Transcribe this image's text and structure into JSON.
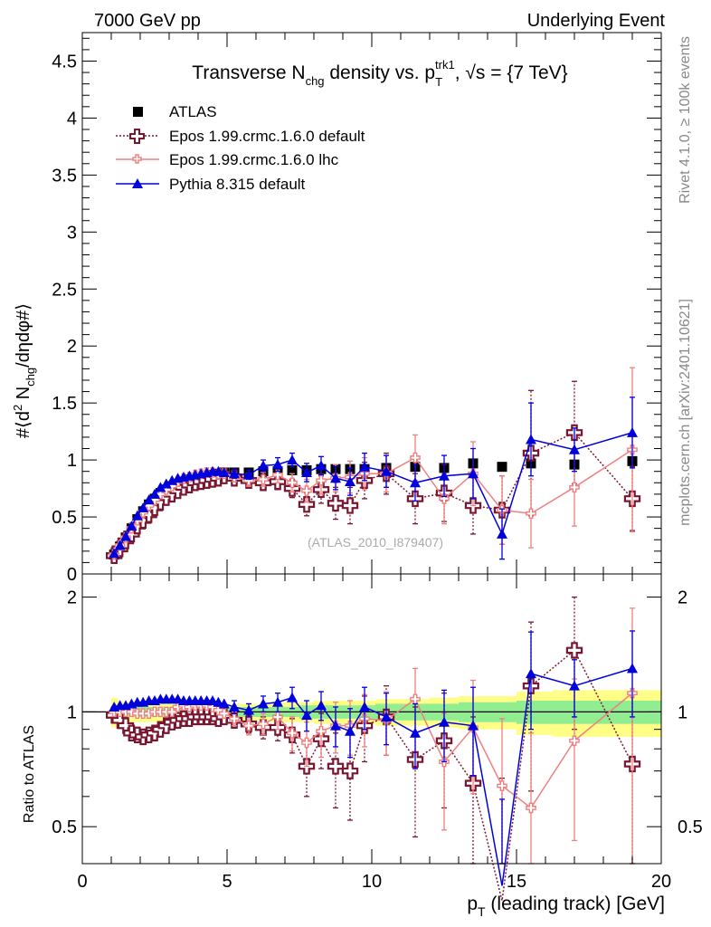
{
  "header": {
    "left": "7000 GeV pp",
    "right": "Underlying Event"
  },
  "side": {
    "rivet": "Rivet 4.1.0, ≥ 100k events",
    "mcplots": "mcplots.cern.ch [arXiv:2401.10621]"
  },
  "colors": {
    "atlas": "#000000",
    "epos_default": "#7a1630",
    "epos_lhc": "#f08080",
    "pythia": "#0000dd",
    "band_inner": "#90ee90",
    "band_outer": "#ffff88"
  },
  "chart_data": [
    {
      "type": "scatter",
      "title_parts": {
        "main_a": "Transverse N",
        "sub_a": "chg",
        "main_b": " density vs. p",
        "sub_b": "T",
        "sup_b": "trk1",
        "main_c": ", √s = {7 TeV}"
      },
      "ylabel_parts": {
        "a": "#⟨d",
        "sup": "2",
        "b": " N",
        "sub": "chg",
        "c": "/dηdφ#⟩"
      },
      "xlim": [
        0,
        20
      ],
      "ylim": [
        0,
        4.75
      ],
      "yticks": [
        0,
        0.5,
        1,
        1.5,
        2,
        2.5,
        3,
        3.5,
        4,
        4.5
      ],
      "ytick_labels": [
        "0",
        "0.5",
        "1",
        "1.5",
        "2",
        "2.5",
        "3",
        "3.5",
        "4",
        "4.5"
      ],
      "watermark": "(ATLAS_2010_I879407)",
      "legend": [
        "ATLAS",
        "Epos 1.99.crmc.1.6.0 default",
        "Epos 1.99.crmc.1.6.0 lhc",
        "Pythia 8.315 default"
      ],
      "series": [
        {
          "name": "ATLAS",
          "x": [
            1.1,
            1.3,
            1.5,
            1.7,
            1.9,
            2.1,
            2.3,
            2.5,
            2.7,
            2.9,
            3.1,
            3.3,
            3.5,
            3.7,
            3.9,
            4.1,
            4.3,
            4.5,
            4.7,
            4.9,
            5.25,
            5.75,
            6.25,
            6.75,
            7.25,
            7.75,
            8.25,
            8.75,
            9.25,
            9.75,
            10.5,
            11.5,
            12.5,
            13.5,
            14.5,
            15.5,
            17.0,
            19.0
          ],
          "y": [
            0.17,
            0.24,
            0.32,
            0.4,
            0.48,
            0.55,
            0.61,
            0.66,
            0.71,
            0.74,
            0.77,
            0.79,
            0.81,
            0.83,
            0.84,
            0.85,
            0.86,
            0.87,
            0.88,
            0.89,
            0.89,
            0.89,
            0.9,
            0.9,
            0.91,
            0.91,
            0.92,
            0.92,
            0.92,
            0.92,
            0.93,
            0.94,
            0.93,
            0.97,
            0.94,
            0.97,
            0.96,
            0.99
          ]
        },
        {
          "name": "Epos 1.99.crmc.1.6.0 default",
          "x": [
            1.1,
            1.3,
            1.5,
            1.7,
            1.9,
            2.1,
            2.3,
            2.5,
            2.7,
            2.9,
            3.1,
            3.3,
            3.5,
            3.7,
            3.9,
            4.1,
            4.3,
            4.5,
            4.7,
            4.9,
            5.25,
            5.75,
            6.25,
            6.75,
            7.25,
            7.75,
            8.25,
            8.75,
            9.25,
            9.75,
            10.5,
            11.5,
            12.5,
            13.5,
            14.5,
            15.5,
            17.0,
            19.0
          ],
          "y": [
            0.16,
            0.22,
            0.29,
            0.35,
            0.42,
            0.47,
            0.52,
            0.58,
            0.63,
            0.67,
            0.7,
            0.73,
            0.76,
            0.78,
            0.8,
            0.81,
            0.82,
            0.83,
            0.84,
            0.86,
            0.84,
            0.82,
            0.8,
            0.81,
            0.75,
            0.61,
            0.74,
            0.62,
            0.6,
            0.82,
            0.88,
            0.66,
            0.71,
            0.6,
            0.56,
            1.06,
            1.24,
            0.66
          ],
          "err": [
            0.01,
            0.01,
            0.01,
            0.01,
            0.01,
            0.01,
            0.01,
            0.01,
            0.01,
            0.01,
            0.01,
            0.01,
            0.01,
            0.02,
            0.02,
            0.02,
            0.02,
            0.02,
            0.03,
            0.03,
            0.04,
            0.05,
            0.06,
            0.07,
            0.08,
            0.1,
            0.12,
            0.14,
            0.16,
            0.16,
            0.18,
            0.22,
            0.25,
            0.25,
            0.3,
            0.55,
            0.45,
            0.28
          ]
        },
        {
          "name": "Epos 1.99.crmc.1.6.0 lhc",
          "x": [
            1.1,
            1.3,
            1.5,
            1.7,
            1.9,
            2.1,
            2.3,
            2.5,
            2.7,
            2.9,
            3.1,
            3.3,
            3.5,
            3.7,
            3.9,
            4.1,
            4.3,
            4.5,
            4.7,
            4.9,
            5.25,
            5.75,
            6.25,
            6.75,
            7.25,
            7.75,
            8.25,
            8.75,
            9.25,
            9.75,
            10.5,
            11.5,
            12.5,
            13.5,
            14.5,
            15.5,
            17.0,
            19.0
          ],
          "y": [
            0.17,
            0.25,
            0.32,
            0.4,
            0.47,
            0.54,
            0.6,
            0.65,
            0.7,
            0.74,
            0.77,
            0.81,
            0.84,
            0.85,
            0.87,
            0.88,
            0.89,
            0.89,
            0.88,
            0.88,
            0.85,
            0.82,
            0.83,
            0.87,
            0.8,
            0.73,
            0.82,
            0.84,
            0.85,
            0.88,
            0.88,
            1.02,
            0.66,
            0.88,
            0.56,
            0.53,
            0.76,
            1.09
          ],
          "err": [
            0.01,
            0.01,
            0.01,
            0.01,
            0.01,
            0.01,
            0.01,
            0.01,
            0.01,
            0.01,
            0.01,
            0.01,
            0.01,
            0.02,
            0.02,
            0.02,
            0.02,
            0.02,
            0.03,
            0.03,
            0.04,
            0.05,
            0.06,
            0.07,
            0.08,
            0.1,
            0.12,
            0.12,
            0.14,
            0.14,
            0.16,
            0.2,
            0.22,
            0.28,
            0.3,
            0.3,
            0.34,
            0.72
          ]
        },
        {
          "name": "Pythia 8.315 default",
          "x": [
            1.1,
            1.3,
            1.5,
            1.7,
            1.9,
            2.1,
            2.3,
            2.5,
            2.7,
            2.9,
            3.1,
            3.3,
            3.5,
            3.7,
            3.9,
            4.1,
            4.3,
            4.5,
            4.7,
            4.9,
            5.25,
            5.75,
            6.25,
            6.75,
            7.25,
            7.75,
            8.25,
            8.75,
            9.25,
            9.75,
            10.5,
            11.5,
            12.5,
            13.5,
            14.5,
            15.5,
            17.0,
            19.0
          ],
          "y": [
            0.18,
            0.25,
            0.33,
            0.42,
            0.51,
            0.58,
            0.65,
            0.7,
            0.76,
            0.79,
            0.82,
            0.84,
            0.85,
            0.86,
            0.87,
            0.88,
            0.89,
            0.9,
            0.9,
            0.89,
            0.88,
            0.87,
            0.95,
            0.96,
            1.0,
            0.89,
            0.95,
            0.84,
            0.81,
            0.94,
            0.9,
            0.8,
            0.86,
            0.88,
            0.35,
            1.18,
            1.09,
            1.24
          ],
          "err": [
            0.01,
            0.01,
            0.01,
            0.01,
            0.01,
            0.01,
            0.01,
            0.01,
            0.01,
            0.01,
            0.01,
            0.01,
            0.01,
            0.02,
            0.02,
            0.02,
            0.02,
            0.02,
            0.03,
            0.03,
            0.04,
            0.04,
            0.05,
            0.06,
            0.06,
            0.08,
            0.08,
            0.1,
            0.12,
            0.12,
            0.14,
            0.16,
            0.18,
            0.22,
            0.22,
            0.32,
            0.19,
            0.31
          ]
        }
      ]
    },
    {
      "type": "scatter",
      "panel": "ratio",
      "ylabel": "Ratio to ATLAS",
      "xlabel_parts": {
        "a": "p",
        "sub": "T",
        "b": " (leading track) [GeV]"
      },
      "xlim": [
        0,
        20
      ],
      "ylim": [
        0.4,
        2.3
      ],
      "xticks": [
        0,
        5,
        10,
        15,
        20
      ],
      "xtick_labels": [
        "0",
        "5",
        "10",
        "15",
        "20"
      ],
      "yticks": [
        0.5,
        1,
        2
      ],
      "ytick_labels": [
        "0.5",
        "1",
        "2"
      ],
      "band_inner": [
        0.04,
        0.04,
        0.03,
        0.03,
        0.03,
        0.03,
        0.03,
        0.03,
        0.03,
        0.03,
        0.03,
        0.03,
        0.03,
        0.03,
        0.03,
        0.03,
        0.03,
        0.03,
        0.03,
        0.03,
        0.03,
        0.03,
        0.03,
        0.03,
        0.03,
        0.04,
        0.04,
        0.04,
        0.04,
        0.04,
        0.05,
        0.05,
        0.05,
        0.06,
        0.06,
        0.07,
        0.07,
        0.07
      ],
      "band_outer": [
        0.09,
        0.07,
        0.06,
        0.06,
        0.06,
        0.06,
        0.06,
        0.06,
        0.06,
        0.06,
        0.05,
        0.05,
        0.05,
        0.05,
        0.05,
        0.05,
        0.05,
        0.05,
        0.05,
        0.05,
        0.05,
        0.05,
        0.05,
        0.06,
        0.06,
        0.06,
        0.07,
        0.07,
        0.07,
        0.07,
        0.08,
        0.08,
        0.09,
        0.1,
        0.1,
        0.13,
        0.14,
        0.14
      ],
      "series": [
        {
          "name": "Epos 1.99.crmc.1.6.0 default",
          "y": [
            0.98,
            0.95,
            0.92,
            0.88,
            0.87,
            0.86,
            0.87,
            0.88,
            0.9,
            0.92,
            0.94,
            0.95,
            0.96,
            0.96,
            0.97,
            0.97,
            0.97,
            0.97,
            0.96,
            0.97,
            0.95,
            0.93,
            0.91,
            0.91,
            0.87,
            0.72,
            0.85,
            0.72,
            0.7,
            0.92,
            0.97,
            0.75,
            0.84,
            0.65,
            0.32,
            1.17,
            1.45,
            0.73
          ],
          "err": [
            0.01,
            0.01,
            0.01,
            0.01,
            0.01,
            0.01,
            0.01,
            0.01,
            0.01,
            0.01,
            0.01,
            0.01,
            0.01,
            0.02,
            0.02,
            0.02,
            0.02,
            0.02,
            0.03,
            0.03,
            0.04,
            0.05,
            0.06,
            0.07,
            0.09,
            0.12,
            0.14,
            0.16,
            0.18,
            0.18,
            0.2,
            0.28,
            0.28,
            0.32,
            0.35,
            0.55,
            0.55,
            0.4
          ]
        },
        {
          "name": "Epos 1.99.crmc.1.6.0 lhc",
          "y": [
            1.0,
            1.0,
            1.0,
            1.0,
            0.99,
            0.99,
            0.99,
            1.0,
            1.0,
            1.0,
            1.0,
            1.03,
            1.04,
            1.03,
            1.04,
            1.04,
            1.04,
            1.03,
            1.01,
            0.99,
            0.96,
            0.92,
            0.93,
            0.97,
            0.88,
            0.83,
            0.89,
            0.92,
            0.92,
            0.96,
            0.95,
            1.08,
            0.74,
            0.91,
            0.64,
            0.56,
            0.84,
            1.12
          ],
          "err": [
            0.01,
            0.01,
            0.01,
            0.01,
            0.01,
            0.01,
            0.01,
            0.01,
            0.01,
            0.01,
            0.01,
            0.01,
            0.01,
            0.02,
            0.02,
            0.02,
            0.02,
            0.02,
            0.03,
            0.03,
            0.04,
            0.05,
            0.06,
            0.07,
            0.09,
            0.11,
            0.13,
            0.14,
            0.15,
            0.15,
            0.18,
            0.22,
            0.25,
            0.3,
            0.32,
            0.32,
            0.38,
            0.75
          ]
        },
        {
          "name": "Pythia 8.315 default",
          "y": [
            1.03,
            1.04,
            1.04,
            1.05,
            1.06,
            1.06,
            1.07,
            1.07,
            1.08,
            1.08,
            1.08,
            1.08,
            1.07,
            1.07,
            1.07,
            1.07,
            1.07,
            1.07,
            1.06,
            1.05,
            1.03,
            1.01,
            1.05,
            1.06,
            1.09,
            0.98,
            1.04,
            0.92,
            0.89,
            1.03,
            0.97,
            0.88,
            0.94,
            0.92,
            0.35,
            1.26,
            1.17,
            1.3
          ],
          "err": [
            0.01,
            0.01,
            0.01,
            0.01,
            0.01,
            0.01,
            0.01,
            0.01,
            0.01,
            0.01,
            0.01,
            0.01,
            0.01,
            0.02,
            0.02,
            0.02,
            0.02,
            0.02,
            0.03,
            0.03,
            0.04,
            0.04,
            0.05,
            0.06,
            0.07,
            0.09,
            0.09,
            0.11,
            0.13,
            0.13,
            0.15,
            0.17,
            0.2,
            0.24,
            0.24,
            0.36,
            0.2,
            0.33
          ]
        }
      ]
    }
  ]
}
